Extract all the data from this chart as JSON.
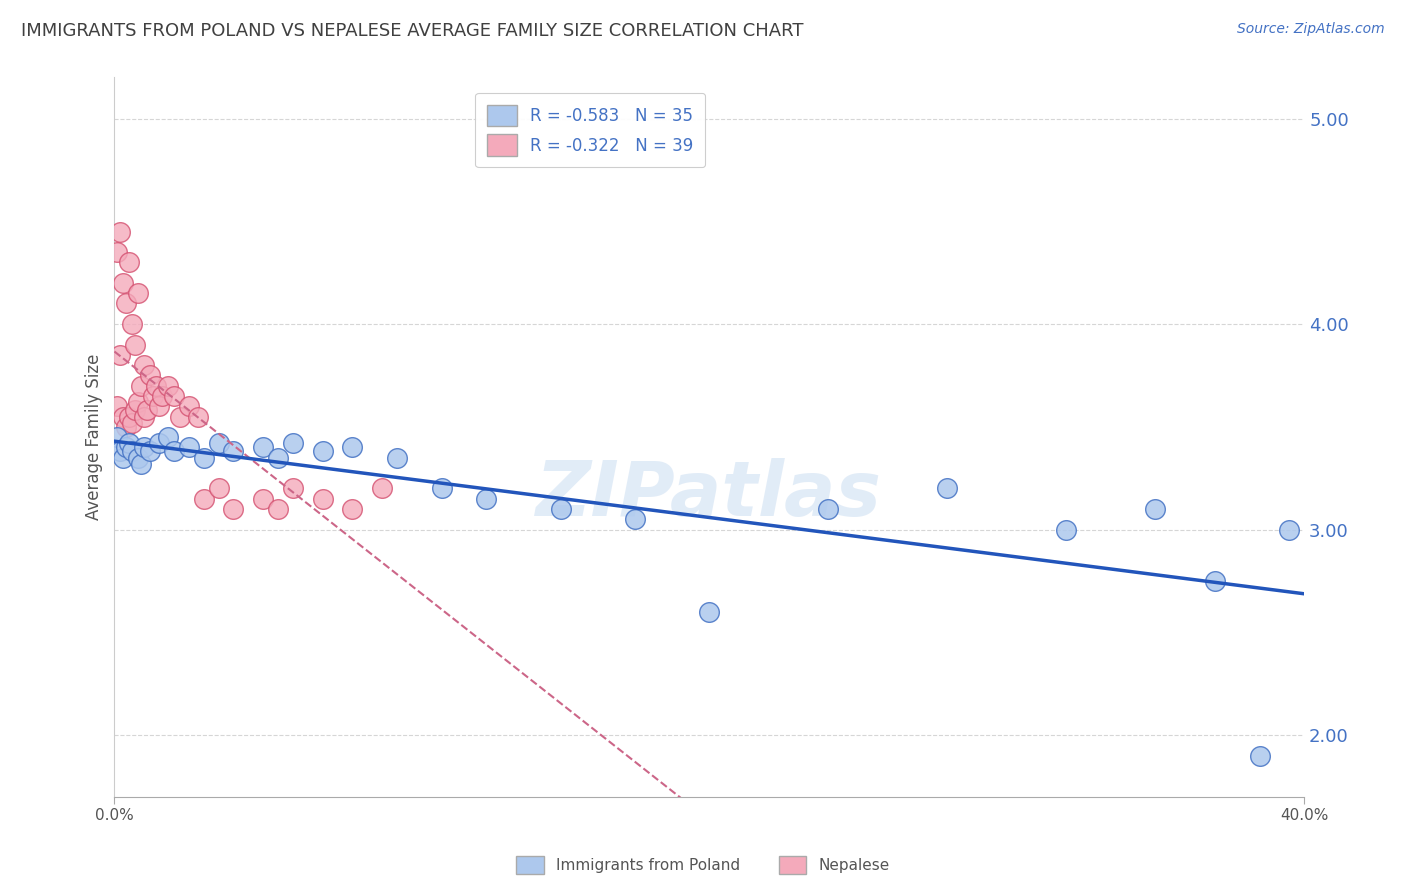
{
  "title": "IMMIGRANTS FROM POLAND VS NEPALESE AVERAGE FAMILY SIZE CORRELATION CHART",
  "source": "Source: ZipAtlas.com",
  "ylabel": "Average Family Size",
  "yticks": [
    2.0,
    3.0,
    4.0,
    5.0
  ],
  "xlim": [
    0.0,
    0.4
  ],
  "ylim": [
    1.7,
    5.2
  ],
  "poland_R": -0.583,
  "poland_N": 35,
  "nepal_R": -0.322,
  "nepal_N": 39,
  "poland_color": "#adc8ed",
  "poland_edge_color": "#4472c4",
  "nepal_color": "#f4aabb",
  "nepal_edge_color": "#d45070",
  "poland_line_color": "#2255bb",
  "nepal_line_color": "#cc6688",
  "background_color": "#ffffff",
  "grid_color": "#cccccc",
  "title_color": "#404040",
  "tick_color": "#4472c4",
  "legend_color": "#4472c4",
  "watermark_color": "#c5daf0",
  "poland_scatter_x": [
    0.001,
    0.002,
    0.003,
    0.004,
    0.005,
    0.006,
    0.008,
    0.009,
    0.01,
    0.012,
    0.015,
    0.018,
    0.02,
    0.025,
    0.03,
    0.035,
    0.04,
    0.05,
    0.055,
    0.06,
    0.07,
    0.08,
    0.095,
    0.11,
    0.125,
    0.15,
    0.175,
    0.2,
    0.24,
    0.28,
    0.32,
    0.35,
    0.37,
    0.385,
    0.395
  ],
  "poland_scatter_y": [
    3.45,
    3.38,
    3.35,
    3.4,
    3.42,
    3.38,
    3.35,
    3.32,
    3.4,
    3.38,
    3.42,
    3.45,
    3.38,
    3.4,
    3.35,
    3.42,
    3.38,
    3.4,
    3.35,
    3.42,
    3.38,
    3.4,
    3.35,
    3.2,
    3.15,
    3.1,
    3.05,
    2.6,
    3.1,
    3.2,
    3.0,
    3.1,
    2.75,
    1.9,
    3.0
  ],
  "nepal_scatter_x": [
    0.001,
    0.001,
    0.002,
    0.002,
    0.003,
    0.003,
    0.004,
    0.004,
    0.005,
    0.005,
    0.006,
    0.006,
    0.007,
    0.007,
    0.008,
    0.008,
    0.009,
    0.01,
    0.01,
    0.011,
    0.012,
    0.013,
    0.014,
    0.015,
    0.016,
    0.018,
    0.02,
    0.022,
    0.025,
    0.028,
    0.03,
    0.035,
    0.04,
    0.05,
    0.055,
    0.06,
    0.07,
    0.08,
    0.09
  ],
  "nepal_scatter_y": [
    3.6,
    4.35,
    3.85,
    4.45,
    3.55,
    4.2,
    3.5,
    4.1,
    3.55,
    4.3,
    3.52,
    4.0,
    3.58,
    3.9,
    3.62,
    4.15,
    3.7,
    3.55,
    3.8,
    3.58,
    3.75,
    3.65,
    3.7,
    3.6,
    3.65,
    3.7,
    3.65,
    3.55,
    3.6,
    3.55,
    3.15,
    3.2,
    3.1,
    3.15,
    3.1,
    3.2,
    3.15,
    3.1,
    3.2
  ]
}
